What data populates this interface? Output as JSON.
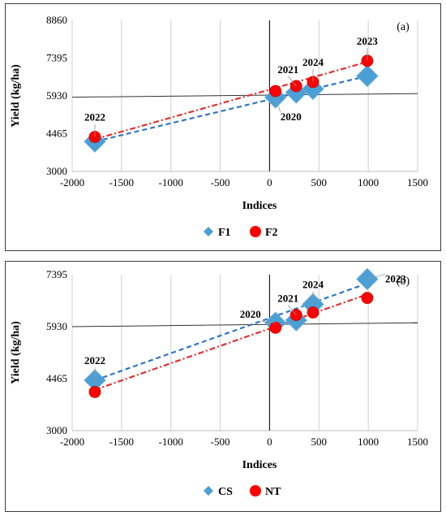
{
  "chart_data": [
    {
      "type": "scatter",
      "panel_label": "(a)",
      "xlabel": "Indices",
      "ylabel": "Yield (kg/ha)",
      "xlim": [
        -2000,
        1500
      ],
      "ylim": [
        3000,
        8860
      ],
      "xticks": [
        -2000,
        -1500,
        -1000,
        -500,
        0,
        500,
        1000,
        1500
      ],
      "yticks": [
        3000,
        4465,
        5930,
        7395,
        8860
      ],
      "grid": "vertical",
      "legend_position": "bottom",
      "reference_line": {
        "x": [
          -2000,
          1500
        ],
        "y": [
          5880,
          6020
        ]
      },
      "series": [
        {
          "name": "F1",
          "marker": "diamond",
          "color": "#4a9fd5",
          "points": [
            {
              "label": "2020",
              "x": 60,
              "y": 5870
            },
            {
              "label": "2021",
              "x": 270,
              "y": 6060
            },
            {
              "label": "2024",
              "x": 440,
              "y": 6200
            },
            {
              "label": "2022",
              "x": -1770,
              "y": 4160
            },
            {
              "label": "2023",
              "x": 990,
              "y": 6700
            }
          ],
          "trend": {
            "x": [
              -1770,
              990
            ],
            "y": [
              4160,
              6700
            ],
            "color": "#2f77c7"
          }
        },
        {
          "name": "F2",
          "marker": "circle",
          "color": "#ff0000",
          "points": [
            {
              "label": "2020",
              "x": 60,
              "y": 6120
            },
            {
              "label": "2021",
              "x": 270,
              "y": 6310
            },
            {
              "label": "2024",
              "x": 440,
              "y": 6470
            },
            {
              "label": "2022",
              "x": -1770,
              "y": 4340
            },
            {
              "label": "2023",
              "x": 990,
              "y": 7290
            }
          ],
          "trend": {
            "x": [
              -1770,
              990
            ],
            "y": [
              4250,
              7250
            ],
            "color": "#e03030"
          }
        }
      ],
      "annotations": [
        {
          "text": "2020",
          "x": 60,
          "y": 5870,
          "pos": "below"
        },
        {
          "text": "2021",
          "x": 270,
          "y": 6310,
          "pos": "above-left"
        },
        {
          "text": "2024",
          "x": 440,
          "y": 6470,
          "pos": "above"
        },
        {
          "text": "2022",
          "x": -1770,
          "y": 4340,
          "pos": "above"
        },
        {
          "text": "2023",
          "x": 990,
          "y": 7290,
          "pos": "above"
        }
      ]
    },
    {
      "type": "scatter",
      "panel_label": "(b)",
      "xlabel": "Indices",
      "ylabel": "Yield (kg/ha)",
      "xlim": [
        -2000,
        1500
      ],
      "ylim": [
        3000,
        7395
      ],
      "xticks": [
        -2000,
        -1500,
        -1000,
        -500,
        0,
        500,
        1000,
        1500
      ],
      "yticks": [
        3000,
        4465,
        5930,
        7395
      ],
      "grid": "vertical",
      "legend_position": "bottom",
      "reference_line": {
        "x": [
          -2000,
          1500
        ],
        "y": [
          5930,
          6040
        ]
      },
      "series": [
        {
          "name": "CS",
          "marker": "diamond",
          "color": "#4a9fd5",
          "points": [
            {
              "label": "2020",
              "x": 60,
              "y": 6040
            },
            {
              "label": "2021",
              "x": 270,
              "y": 6110
            },
            {
              "label": "2024",
              "x": 440,
              "y": 6560
            },
            {
              "label": "2022",
              "x": -1770,
              "y": 4420
            },
            {
              "label": "2023",
              "x": 990,
              "y": 7270
            }
          ],
          "trend": {
            "x": [
              -1770,
              990
            ],
            "y": [
              4420,
              7150
            ],
            "color": "#2f77c7"
          }
        },
        {
          "name": "NT",
          "marker": "circle",
          "color": "#ff0000",
          "points": [
            {
              "label": "2020",
              "x": 60,
              "y": 5900
            },
            {
              "label": "2021",
              "x": 270,
              "y": 6260
            },
            {
              "label": "2024",
              "x": 440,
              "y": 6330
            },
            {
              "label": "2022",
              "x": -1770,
              "y": 4090
            },
            {
              "label": "2023",
              "x": 990,
              "y": 6740
            }
          ],
          "trend": {
            "x": [
              -1770,
              990
            ],
            "y": [
              4150,
              6840
            ],
            "color": "#e03030"
          }
        }
      ],
      "annotations": [
        {
          "text": "2020",
          "x": 60,
          "y": 6040,
          "pos": "left"
        },
        {
          "text": "2021",
          "x": 270,
          "y": 6260,
          "pos": "above-left"
        },
        {
          "text": "2024",
          "x": 440,
          "y": 6560,
          "pos": "above"
        },
        {
          "text": "2022",
          "x": -1770,
          "y": 4420,
          "pos": "above"
        },
        {
          "text": "2023",
          "x": 990,
          "y": 7270,
          "pos": "right"
        }
      ]
    }
  ]
}
